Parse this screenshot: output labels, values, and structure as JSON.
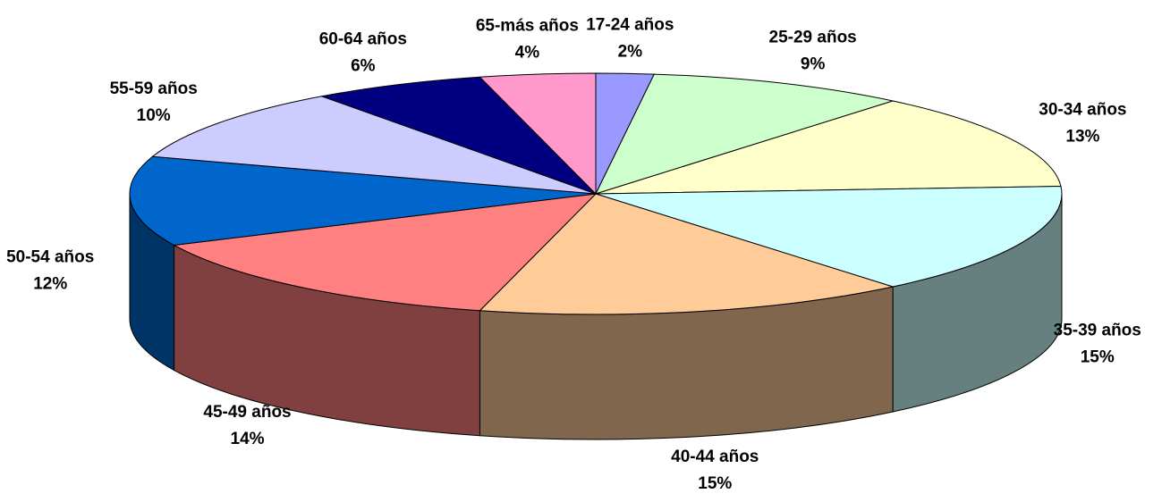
{
  "chart_data": {
    "type": "pie",
    "categories": [
      "17-24 años",
      "25-29 años",
      "30-34 años",
      "35-39 años",
      "40-44 años",
      "45-49 años",
      "50-54 años",
      "55-59 años",
      "60-64 años",
      "65-más años"
    ],
    "values": [
      2,
      9,
      13,
      15,
      15,
      14,
      12,
      10,
      6,
      4
    ],
    "value_labels": [
      "2%",
      "9%",
      "13%",
      "15%",
      "15%",
      "14%",
      "12%",
      "10%",
      "6%",
      "4%"
    ],
    "colors": [
      "#9999ff",
      "#ccffcc",
      "#ffffcc",
      "#ccffff",
      "#ffcc99",
      "#ff8080",
      "#0066cc",
      "#ccccff",
      "#000080",
      "#ff99cc"
    ]
  }
}
